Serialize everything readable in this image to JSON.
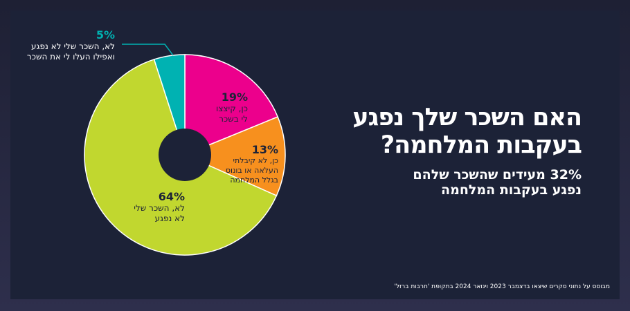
{
  "title_lines": [
    "האם השכר שלך נפגע",
    "בעקבות המלחמה?"
  ],
  "subtitle_lines": [
    "32% מעידים שהשכר שלהם",
    "נפגע בעקבות המלחמה"
  ],
  "source": "מבוסס על נתוני סקרים שיצאו בדצמבר 2023 וינואר 2024 בתקופת 'חרבות ברזל'",
  "chart_data": {
    "type": "pie",
    "donut": true,
    "start": "top",
    "direction": "clockwise",
    "slices": [
      {
        "value": 19,
        "pct_label": "19%",
        "label_lines": [
          "כן, קיצצו",
          "לי בשכר"
        ],
        "color": "#ec008c"
      },
      {
        "value": 13,
        "pct_label": "13%",
        "label_lines": [
          "כן, לא קיבלתי",
          "העלאה או בונוס",
          "בגלל המלחמה"
        ],
        "color": "#f7901e"
      },
      {
        "value": 64,
        "pct_label": "64%",
        "label_lines": [
          "לא, השכר שלי",
          "לא נפגע"
        ],
        "color": "#c1d72f"
      },
      {
        "value": 5,
        "pct_label": "5%",
        "label_lines": [
          "לא, השכר שלי לא נפגע",
          "ואפילו העלו לי את השכר"
        ],
        "color": "#00b2b2"
      }
    ]
  }
}
